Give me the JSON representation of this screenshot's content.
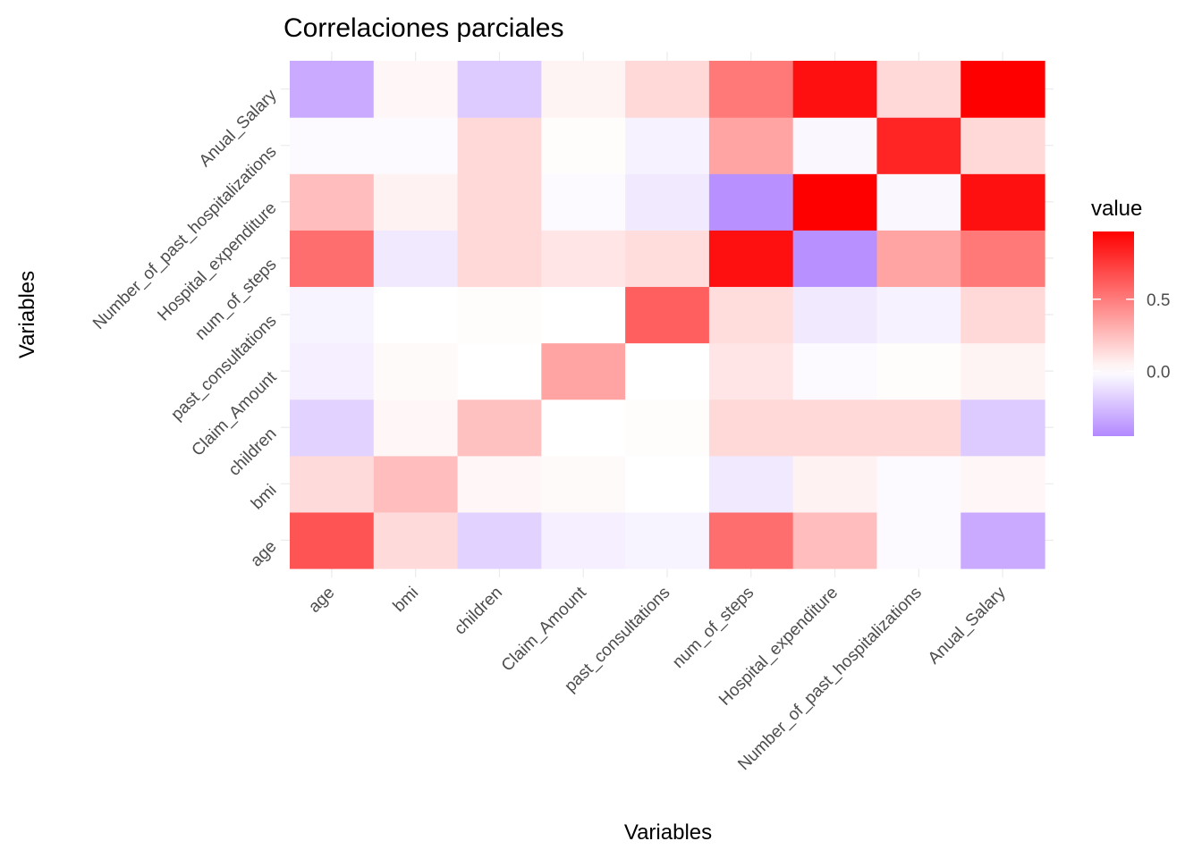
{
  "chart_data": {
    "type": "heatmap",
    "title": "Correlaciones parciales",
    "xlabel": "Variables",
    "ylabel": "Variables",
    "legend_title": "value",
    "legend_position": "right",
    "legend_ticks": [
      0.5,
      0.0
    ],
    "legend_tick_labels": [
      "0.5",
      "0.0"
    ],
    "value_range": [
      -0.45,
      0.97
    ],
    "colors": {
      "low": "#b388ff",
      "mid": "#ffffff",
      "high": "#ff0000",
      "grid": "#ebebeb"
    },
    "grid": true,
    "x_categories": [
      "age",
      "bmi",
      "children",
      "Claim_Amount",
      "past_consultations",
      "num_of_steps",
      "Hospital_expenditure",
      "Number_of_past_hospitalizations",
      "Anual_Salary"
    ],
    "y_categories": [
      "age",
      "bmi",
      "children",
      "Claim_Amount",
      "past_consultations",
      "num_of_steps",
      "Hospital_expenditure",
      "Number_of_past_hospitalizations",
      "Anual_Salary"
    ],
    "values": [
      [
        0.65,
        0.14,
        -0.17,
        -0.06,
        -0.04,
        0.55,
        0.25,
        -0.02,
        -0.32
      ],
      [
        0.14,
        0.25,
        0.03,
        0.02,
        0.0,
        -0.08,
        0.05,
        -0.02,
        0.03
      ],
      [
        -0.17,
        0.03,
        0.24,
        0.0,
        0.01,
        0.15,
        0.15,
        0.15,
        -0.2
      ],
      [
        -0.06,
        0.02,
        0.0,
        0.35,
        0.0,
        0.1,
        -0.02,
        0.01,
        0.04
      ],
      [
        -0.04,
        0.0,
        0.01,
        0.0,
        0.61,
        0.13,
        -0.08,
        -0.05,
        0.15
      ],
      [
        0.55,
        -0.08,
        0.15,
        0.1,
        0.13,
        0.91,
        -0.42,
        0.35,
        0.51
      ],
      [
        0.25,
        0.05,
        0.15,
        -0.02,
        -0.08,
        -0.42,
        0.97,
        -0.03,
        0.91
      ],
      [
        -0.02,
        -0.02,
        0.15,
        0.01,
        -0.05,
        0.35,
        -0.03,
        0.83,
        0.15
      ],
      [
        -0.32,
        0.03,
        -0.2,
        0.04,
        0.15,
        0.51,
        0.91,
        0.15,
        0.97
      ]
    ]
  }
}
